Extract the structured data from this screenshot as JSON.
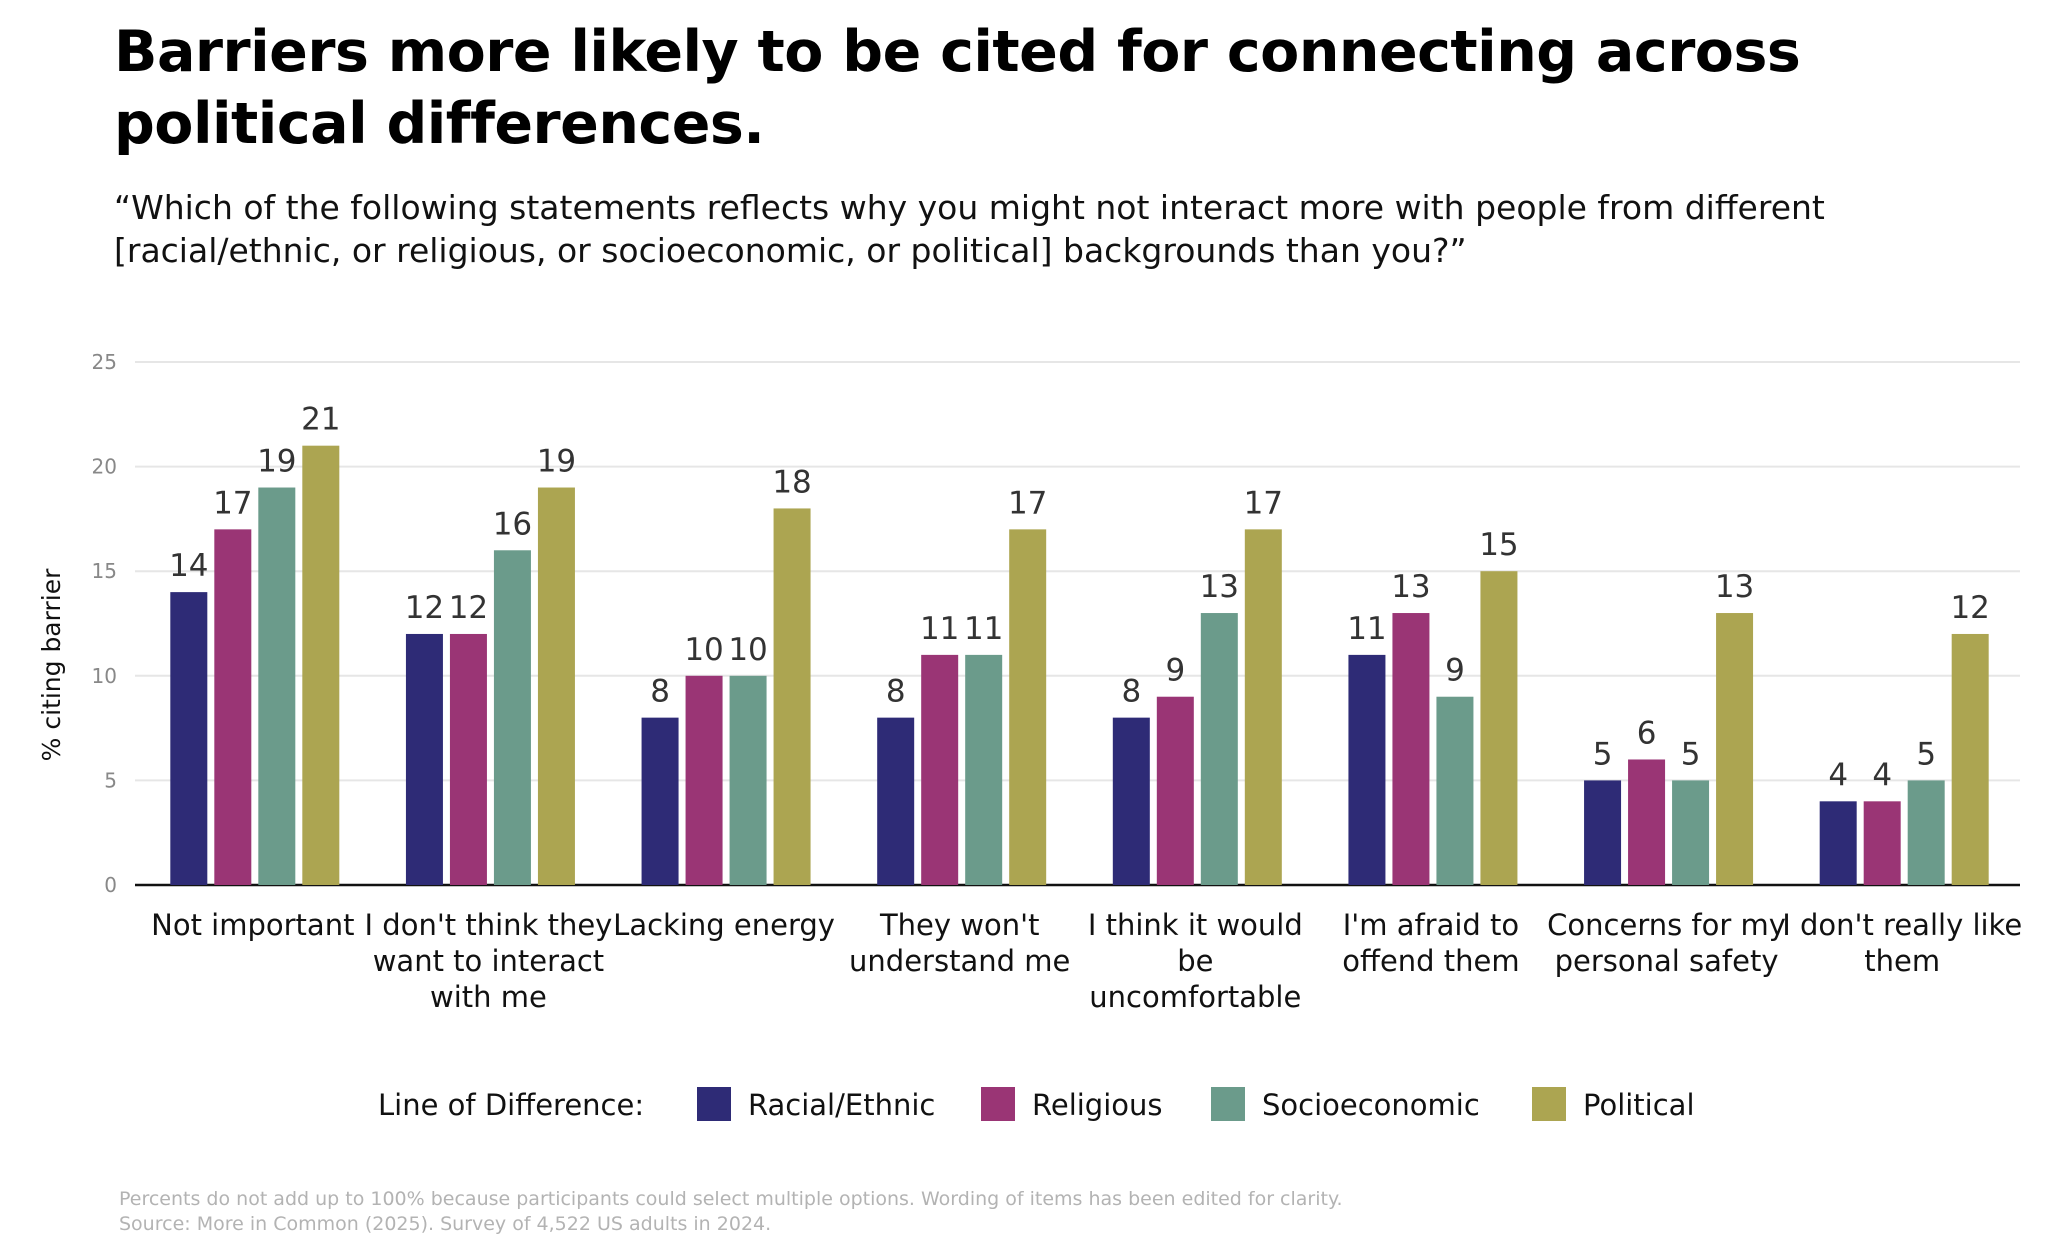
{
  "title": "Barriers more likely to be cited for connecting across political differences.",
  "subtitle": "“Which of the following statements reflects why you might not interact more with people from different [racial/ethnic, or religious, or socioeconomic, or political] backgrounds than you?”",
  "legend_title": "Line of Difference:",
  "footnotes": [
    "Percents do not add up to 100% because participants could select multiple options. Wording of items has been edited for clarity.",
    "Source: More in Common (2025). Survey of 4,522 US adults in 2024."
  ],
  "chart_data": {
    "type": "bar",
    "ylabel": "% citing barrier",
    "xlabel": "",
    "ylim": [
      0,
      25
    ],
    "yticks": [
      0,
      5,
      10,
      15,
      20,
      25
    ],
    "grid": true,
    "legend_position": "bottom",
    "categories": [
      [
        "Not important"
      ],
      [
        "I don't think they",
        "want to interact",
        "with me"
      ],
      [
        "Lacking energy"
      ],
      [
        "They won't",
        "understand me"
      ],
      [
        "I think it would",
        "be",
        "uncomfortable"
      ],
      [
        "I'm afraid to",
        "offend them"
      ],
      [
        "Concerns for my",
        "personal safety"
      ],
      [
        "I don't really like",
        "them"
      ]
    ],
    "series": [
      {
        "name": "Racial/Ethnic",
        "color": "#2e2b76",
        "values": [
          14,
          12,
          8,
          8,
          8,
          11,
          5,
          4
        ]
      },
      {
        "name": "Religious",
        "color": "#9a3575",
        "values": [
          17,
          12,
          10,
          11,
          9,
          13,
          6,
          4
        ]
      },
      {
        "name": "Socioeconomic",
        "color": "#6b9b8b",
        "values": [
          19,
          16,
          10,
          11,
          13,
          9,
          5,
          5
        ]
      },
      {
        "name": "Political",
        "color": "#aca551",
        "values": [
          21,
          19,
          18,
          17,
          17,
          15,
          13,
          12
        ]
      }
    ]
  }
}
